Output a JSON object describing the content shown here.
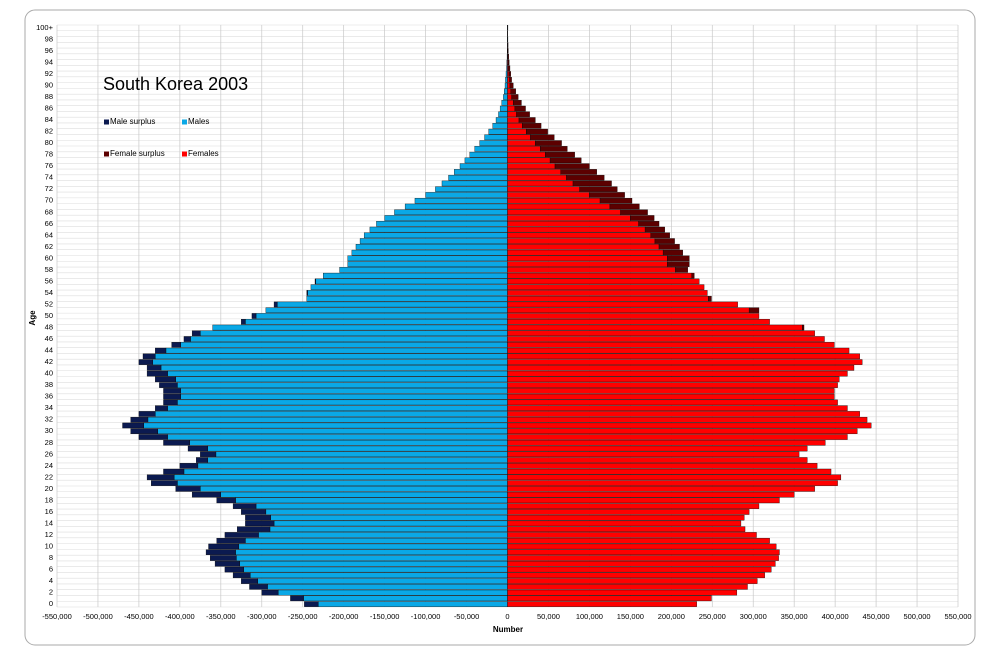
{
  "chart_data": {
    "type": "pyramid",
    "title": "South Korea 2003",
    "x_label": "Number",
    "y_label": "Age",
    "categories": [
      "0",
      null,
      "2",
      null,
      "4",
      null,
      "6",
      null,
      "8",
      null,
      "10",
      null,
      "12",
      null,
      "14",
      null,
      "16",
      null,
      "18",
      null,
      "20",
      null,
      "22",
      null,
      "24",
      null,
      "26",
      null,
      "28",
      null,
      "30",
      null,
      "32",
      null,
      "34",
      null,
      "36",
      null,
      "38",
      null,
      "40",
      null,
      "42",
      null,
      "44",
      null,
      "46",
      null,
      "48",
      null,
      "50",
      null,
      "52",
      null,
      "54",
      null,
      "56",
      null,
      "58",
      null,
      "60",
      null,
      "62",
      null,
      "64",
      null,
      "66",
      null,
      "68",
      null,
      "70",
      null,
      "72",
      null,
      "74",
      null,
      "76",
      null,
      "78",
      null,
      "80",
      null,
      "82",
      null,
      "84",
      null,
      "86",
      null,
      "88",
      null,
      "90",
      null,
      "92",
      null,
      "94",
      null,
      "96",
      null,
      "98",
      null,
      "100+"
    ],
    "series": [
      {
        "name": "Male surplus",
        "color": "#0b1a50",
        "values": [
          -17000,
          -16000,
          -20000,
          -22000,
          -20000,
          -21000,
          -23000,
          -30000,
          -32000,
          -36000,
          -37000,
          -35000,
          -41000,
          -40000,
          -35000,
          -31000,
          -30000,
          -28000,
          -23000,
          -35000,
          -30000,
          -32000,
          -33000,
          -25000,
          -22000,
          -14000,
          -19000,
          -24000,
          -32000,
          -35000,
          -33000,
          -26000,
          -21000,
          -20000,
          -15000,
          -17000,
          -21000,
          -21000,
          -22000,
          -25000,
          -25000,
          -17000,
          -17000,
          -15000,
          -13000,
          -11000,
          -8000,
          -10000,
          0,
          -5000,
          -5000,
          0,
          -4000,
          0,
          -1000,
          0,
          -1000,
          0,
          0,
          0,
          0,
          0,
          0,
          0,
          0,
          0,
          0,
          0,
          0,
          0,
          0,
          0,
          0,
          0,
          0,
          0,
          0,
          0,
          0,
          0,
          0,
          0,
          0,
          0,
          0,
          0,
          0,
          0,
          0,
          0,
          0,
          0,
          0,
          0,
          0,
          0,
          0,
          0,
          0,
          0,
          0
        ]
      },
      {
        "name": "Males",
        "color": "#0aa8e6",
        "values": [
          -231000,
          -249000,
          -280000,
          -293000,
          -305000,
          -314000,
          -322000,
          -327000,
          -331000,
          -332000,
          -328000,
          -320000,
          -304000,
          -290000,
          -285000,
          -289000,
          -295000,
          -307000,
          -332000,
          -350000,
          -375000,
          -403000,
          -407000,
          -395000,
          -378000,
          -366000,
          -356000,
          -366000,
          -388000,
          -415000,
          -427000,
          -444000,
          -439000,
          -430000,
          -415000,
          -403000,
          -399000,
          -399000,
          -403000,
          -405000,
          -415000,
          -423000,
          -433000,
          -430000,
          -417000,
          -399000,
          -387000,
          -375000,
          -360000,
          -320000,
          -307000,
          -295000,
          -281000,
          -245000,
          -244000,
          -240000,
          -234000,
          -225000,
          -205000,
          -195000,
          -195000,
          -190000,
          -185000,
          -180000,
          -175000,
          -168000,
          -160000,
          -150000,
          -138000,
          -125000,
          -113000,
          -100000,
          -88000,
          -80000,
          -72000,
          -65000,
          -58000,
          -52000,
          -46000,
          -40000,
          -34000,
          -28000,
          -23000,
          -18000,
          -14000,
          -11000,
          -9000,
          -7000,
          -5000,
          -4000,
          -3000,
          -2500,
          -1800,
          -1200,
          -800,
          -500,
          -300,
          -200,
          -150,
          -100,
          -100
        ]
      },
      {
        "name": "Female surplus",
        "color": "#5c0000",
        "values": [
          0,
          0,
          0,
          0,
          0,
          0,
          0,
          0,
          0,
          0,
          0,
          0,
          0,
          0,
          0,
          0,
          0,
          0,
          0,
          0,
          0,
          0,
          0,
          0,
          0,
          0,
          0,
          0,
          0,
          0,
          0,
          0,
          0,
          0,
          0,
          0,
          0,
          0,
          0,
          0,
          0,
          0,
          0,
          0,
          0,
          0,
          0,
          0,
          2000,
          0,
          0,
          12000,
          0,
          4000,
          0,
          0,
          0,
          3000,
          15000,
          27000,
          27000,
          24000,
          25000,
          24000,
          23000,
          24000,
          25000,
          29000,
          33000,
          36000,
          39000,
          43000,
          46000,
          47000,
          46000,
          44000,
          42000,
          38000,
          36000,
          33000,
          32000,
          29000,
          26000,
          23000,
          20000,
          16000,
          13000,
          10000,
          8000,
          6000,
          4000,
          2500,
          2200,
          1800,
          1200,
          1000,
          700,
          500,
          350,
          200,
          400
        ]
      },
      {
        "name": "Females",
        "color": "#ff0000",
        "values": [
          231000,
          249000,
          280000,
          293000,
          305000,
          314000,
          322000,
          327000,
          331000,
          332000,
          328000,
          320000,
          304000,
          290000,
          285000,
          289000,
          295000,
          307000,
          332000,
          350000,
          375000,
          403000,
          407000,
          395000,
          378000,
          366000,
          356000,
          366000,
          388000,
          415000,
          427000,
          444000,
          439000,
          430000,
          415000,
          403000,
          399000,
          399000,
          403000,
          405000,
          415000,
          423000,
          433000,
          430000,
          417000,
          399000,
          387000,
          375000,
          360000,
          320000,
          307000,
          295000,
          281000,
          245000,
          244000,
          240000,
          234000,
          225000,
          205000,
          195000,
          195000,
          190000,
          185000,
          180000,
          175000,
          168000,
          160000,
          150000,
          138000,
          125000,
          113000,
          100000,
          88000,
          80000,
          72000,
          65000,
          58000,
          52000,
          46000,
          40000,
          34000,
          28000,
          23000,
          18000,
          14000,
          11000,
          9000,
          7000,
          5000,
          4000,
          3000,
          2500,
          1800,
          1200,
          800,
          500,
          300,
          200,
          150,
          100,
          100
        ]
      }
    ],
    "xlim": [
      -550000,
      550000
    ],
    "xticks": [
      {
        "value": -550000,
        "label": "-550,000"
      },
      {
        "value": -500000,
        "label": "-500,000"
      },
      {
        "value": -450000,
        "label": "-450,000"
      },
      {
        "value": -400000,
        "label": "-400,000"
      },
      {
        "value": -350000,
        "label": "-350,000"
      },
      {
        "value": -300000,
        "label": "-300,000"
      },
      {
        "value": -250000,
        "label": "-250,000"
      },
      {
        "value": -200000,
        "label": "-200,000"
      },
      {
        "value": -150000,
        "label": "-150,000"
      },
      {
        "value": -100000,
        "label": "-100,000"
      },
      {
        "value": -50000,
        "label": "-50,000"
      },
      0,
      {
        "value": 50000,
        "label": "50,000"
      },
      {
        "value": 100000,
        "label": "100,000"
      },
      {
        "value": 150000,
        "label": "150,000"
      },
      {
        "value": 200000,
        "label": "200,000"
      },
      {
        "value": 250000,
        "label": "250,000"
      },
      {
        "value": 300000,
        "label": "300,000"
      },
      {
        "value": 350000,
        "label": "350,000"
      },
      {
        "value": 400000,
        "label": "400,000"
      },
      {
        "value": 450000,
        "label": "450,000"
      },
      {
        "value": 500000,
        "label": "500,000"
      },
      {
        "value": 550000,
        "label": "550,000"
      }
    ],
    "grid": true
  }
}
